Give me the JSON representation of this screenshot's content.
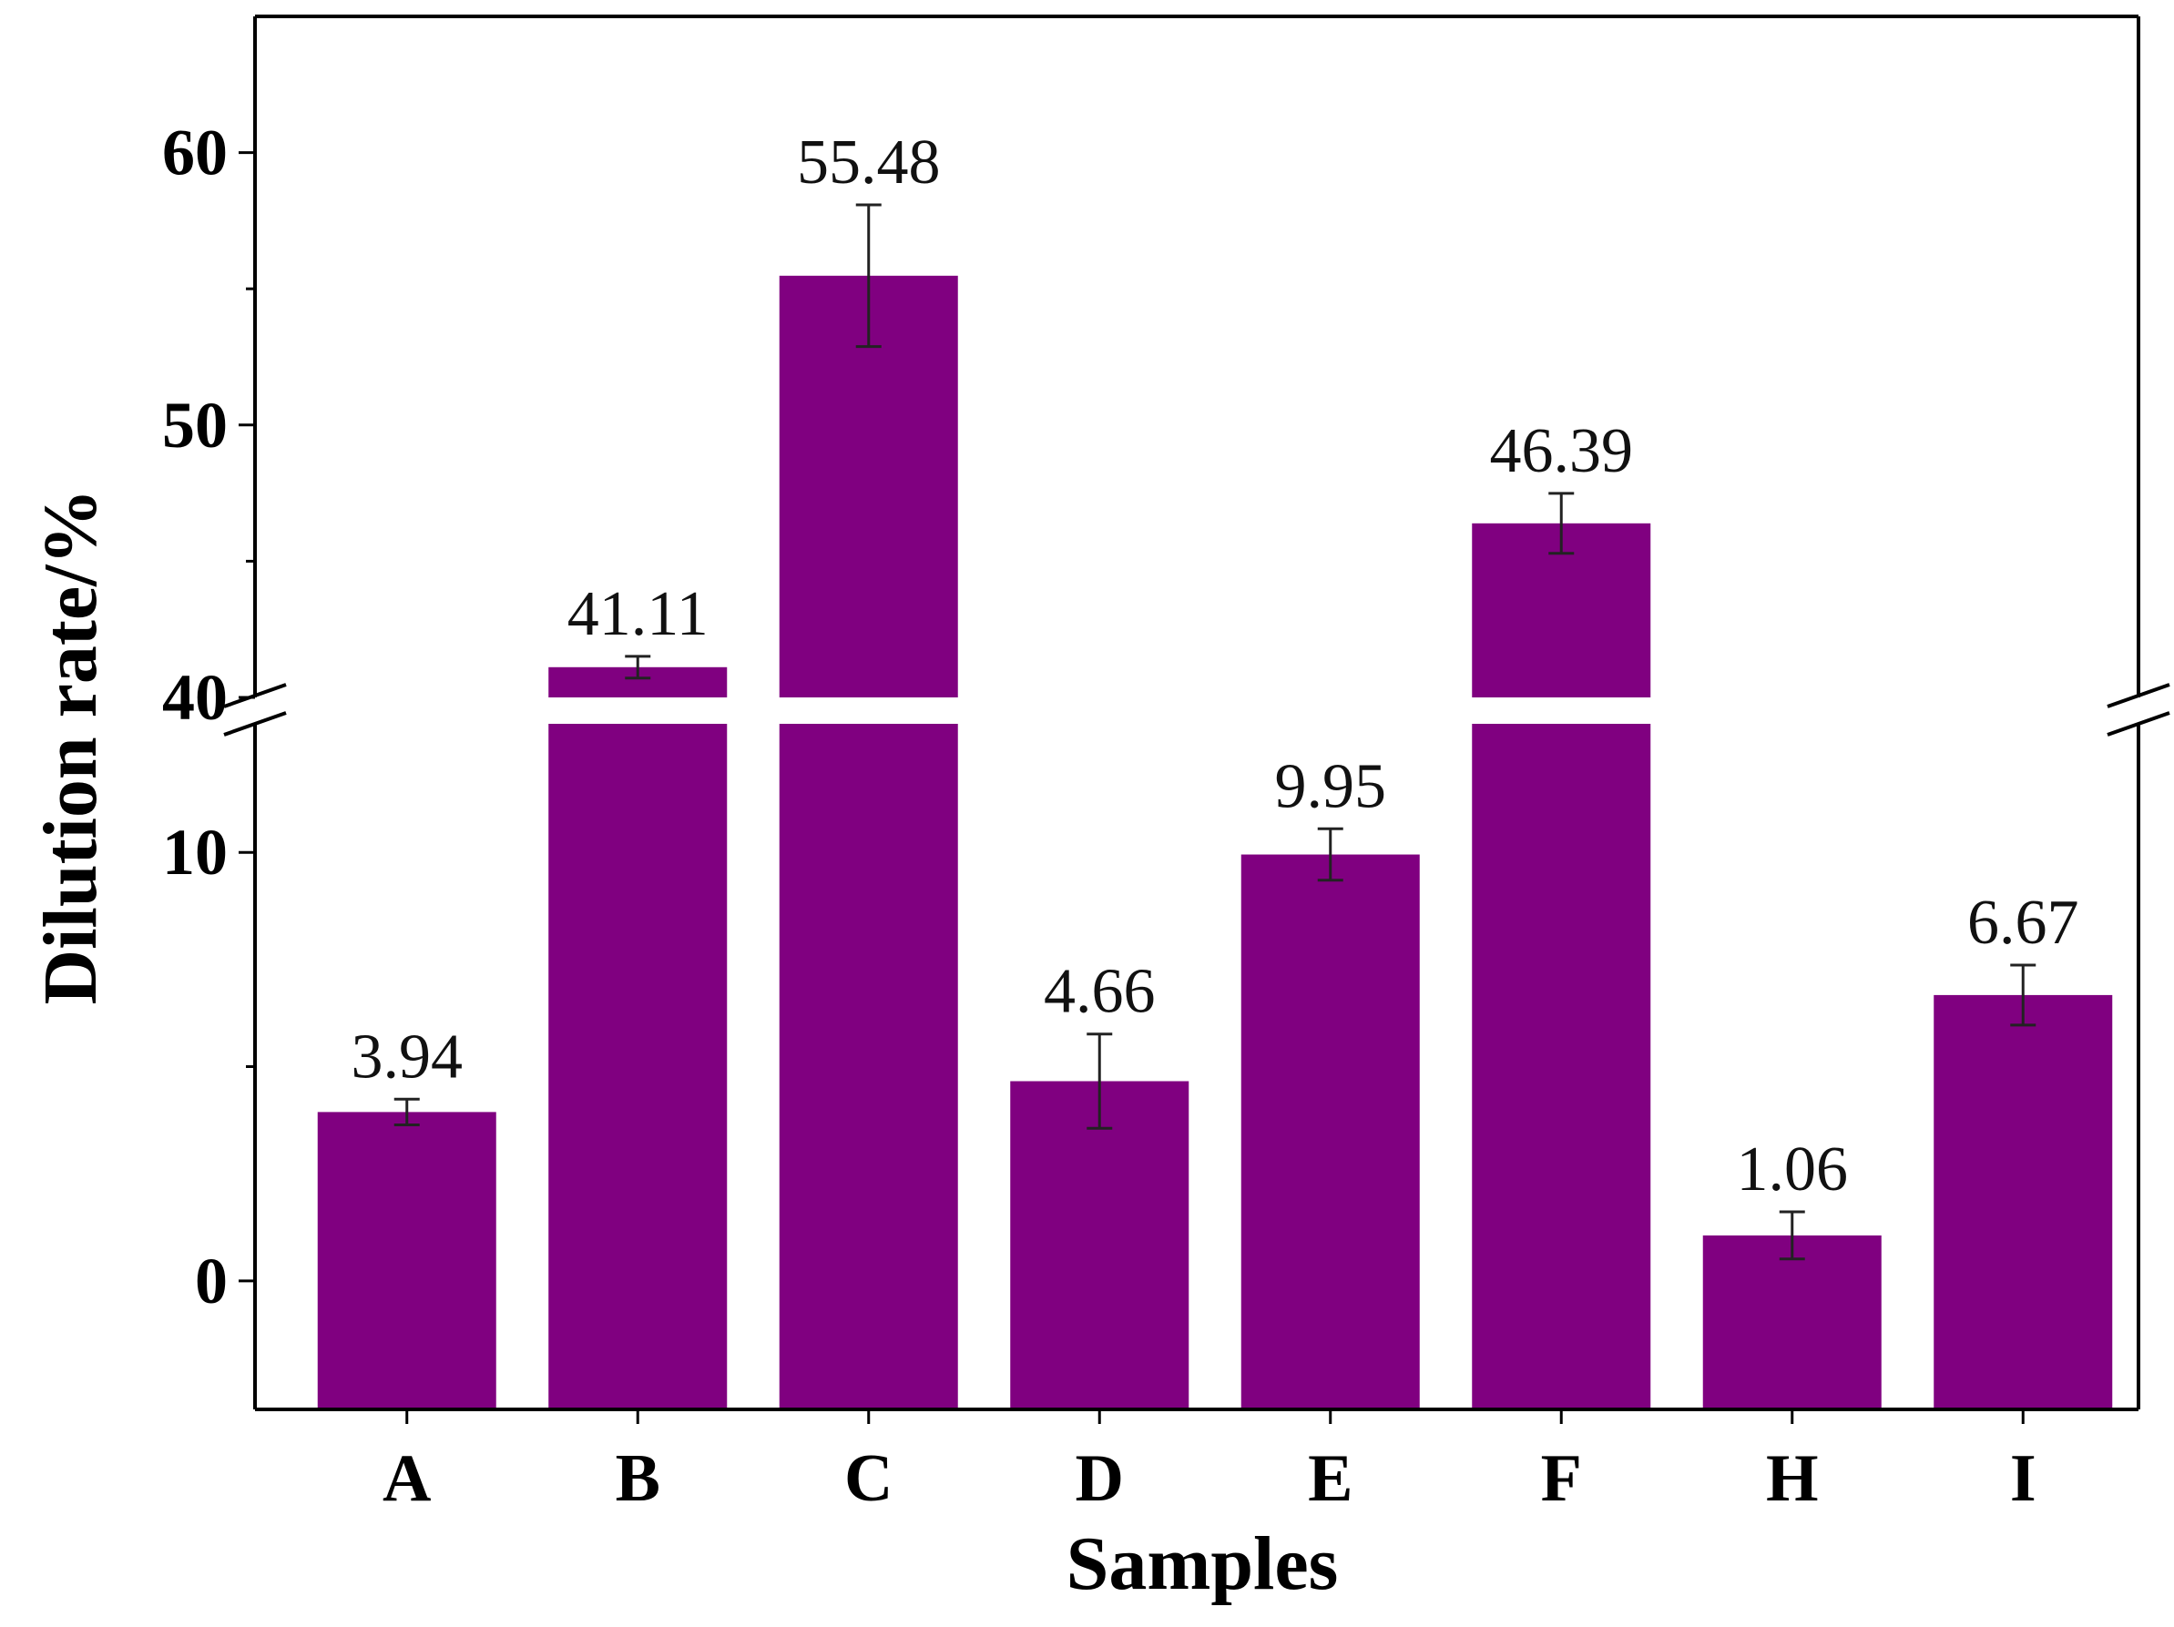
{
  "colors": {
    "bar": "#800080",
    "bar_edge": "#5a005a",
    "axis": "#000000",
    "error_bar": "#222222",
    "background": "#ffffff"
  },
  "chart_data": {
    "type": "bar",
    "title": "",
    "xlabel": "Samples",
    "ylabel": "Dilution rate/%",
    "categories": [
      "A",
      "B",
      "C",
      "D",
      "E",
      "F",
      "H",
      "I"
    ],
    "values": [
      3.94,
      41.11,
      55.48,
      4.66,
      9.95,
      46.39,
      1.06,
      6.67
    ],
    "value_labels": [
      "3.94",
      "41.11",
      "55.48",
      "4.66",
      "9.95",
      "46.39",
      "1.06",
      "6.67"
    ],
    "error": [
      0.3,
      0.4,
      2.6,
      1.1,
      0.6,
      1.1,
      0.55,
      0.7
    ],
    "y_axis_broken": true,
    "y_break": {
      "lower_range": [
        -3,
        13
      ],
      "upper_range": [
        40,
        65
      ]
    },
    "y_ticks_lower": [
      0,
      10
    ],
    "y_ticks_upper": [
      40,
      50,
      60
    ],
    "grid": false,
    "legend": "none"
  }
}
